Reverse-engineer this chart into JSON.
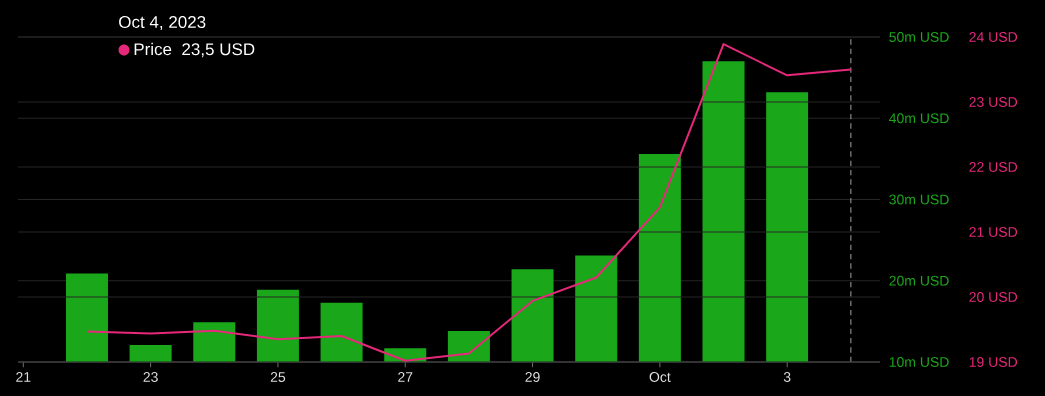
{
  "chart_data": {
    "type": "bar",
    "x": [
      "2023-09-22",
      "2023-09-23",
      "2023-09-24",
      "2023-09-25",
      "2023-09-26",
      "2023-09-27",
      "2023-09-28",
      "2023-09-29",
      "2023-09-30",
      "2023-10-01",
      "2023-10-02",
      "2023-10-03"
    ],
    "series": [
      {
        "axis": "y",
        "color": "#1aa81a",
        "values": [
          20.9,
          12.1,
          14.9,
          18.9,
          17.3,
          11.7,
          13.8,
          21.4,
          23.1,
          35.6,
          47.0,
          43.2
        ]
      },
      {
        "type": "line",
        "axis": "y2",
        "name": "Price",
        "color": "#e6287a",
        "x": [
          "2023-09-22",
          "2023-09-23",
          "2023-09-24",
          "2023-09-25",
          "2023-09-26",
          "2023-09-27",
          "2023-09-28",
          "2023-09-29",
          "2023-09-30",
          "2023-10-01",
          "2023-10-02",
          "2023-10-03",
          "2023-10-04"
        ],
        "values": [
          19.47,
          19.44,
          19.48,
          19.35,
          19.4,
          19.02,
          19.13,
          19.94,
          20.3,
          21.38,
          23.89,
          23.41,
          23.5
        ]
      }
    ],
    "xlim": [
      "2023-09-20T22:00",
      "2023-10-04T11:00"
    ],
    "xticks": [
      {
        "value": "2023-09-21",
        "label": "21"
      },
      {
        "value": "2023-09-23",
        "label": "23"
      },
      {
        "value": "2023-09-25",
        "label": "25"
      },
      {
        "value": "2023-09-27",
        "label": "27"
      },
      {
        "value": "2023-09-29",
        "label": "29"
      },
      {
        "value": "2023-10-01",
        "label": "Oct"
      },
      {
        "value": "2023-10-03",
        "label": "3"
      }
    ],
    "ylim": [
      10,
      50
    ],
    "yticks": [
      {
        "value": 10,
        "label": "10m USD"
      },
      {
        "value": 20,
        "label": "20m USD"
      },
      {
        "value": 30,
        "label": "30m USD"
      },
      {
        "value": 40,
        "label": "40m USD"
      },
      {
        "value": 50,
        "label": "50m USD"
      }
    ],
    "y2lim": [
      19,
      24
    ],
    "y2ticks": [
      {
        "value": 19,
        "label": "19 USD"
      },
      {
        "value": 20,
        "label": "20 USD"
      },
      {
        "value": 21,
        "label": "21 USD"
      },
      {
        "value": 22,
        "label": "22 USD"
      },
      {
        "value": 23,
        "label": "23 USD"
      },
      {
        "value": 24,
        "label": "24 USD"
      }
    ],
    "grid": "y",
    "legend": "top left",
    "ref_lines": [
      {
        "axis": "x",
        "value": "2023-10-04",
        "color": "#888888",
        "line_style": "dashed"
      }
    ],
    "annotations": [
      "Oct 4, 2023",
      "23,5 USD"
    ]
  }
}
